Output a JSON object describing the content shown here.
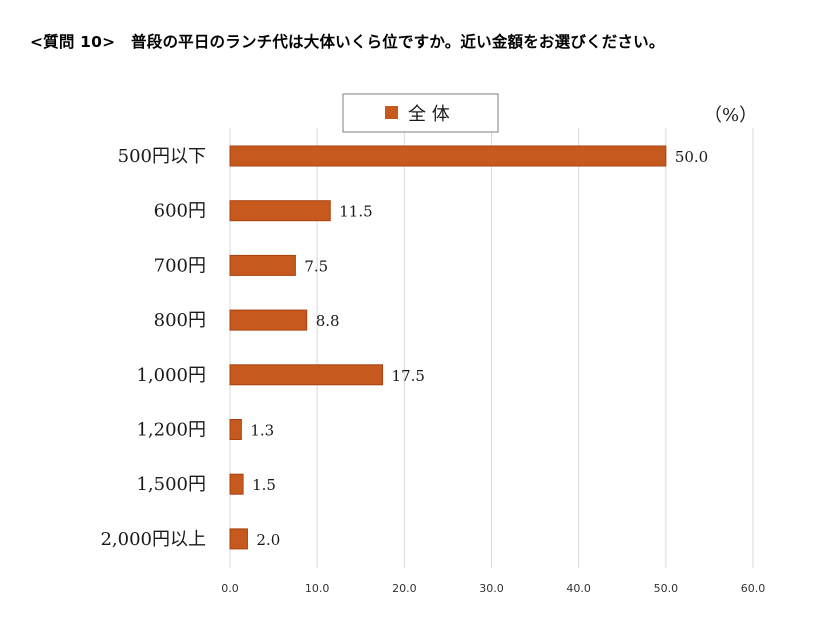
{
  "question": "<質問 10>　普段の平日のランチ代は大体いくら位ですか。近い金額をお選びください。",
  "chart_data": {
    "type": "bar",
    "orientation": "horizontal",
    "categories": [
      "500円以下",
      "600円",
      "700円",
      "800円",
      "1,000円",
      "1,200円",
      "1,500円",
      "2,000円以上"
    ],
    "series": [
      {
        "name": "全 体",
        "values": [
          50.0,
          11.5,
          7.5,
          8.8,
          17.5,
          1.3,
          1.5,
          2.0
        ]
      }
    ],
    "value_labels": [
      "50.0",
      "11.5",
      "7.5",
      "8.8",
      "17.5",
      "1.3",
      "1.5",
      "2.0"
    ],
    "xlim": [
      0,
      60
    ],
    "xticks": [
      "0.0",
      "10.0",
      "20.0",
      "30.0",
      "40.0",
      "50.0",
      "60.0"
    ],
    "unit": "（%）",
    "grid": "vertical",
    "legend_position": "top",
    "bar_color": "#c65a1e",
    "bar_edge_color": "#a8410f",
    "grid_color": "#d9d9d9"
  }
}
